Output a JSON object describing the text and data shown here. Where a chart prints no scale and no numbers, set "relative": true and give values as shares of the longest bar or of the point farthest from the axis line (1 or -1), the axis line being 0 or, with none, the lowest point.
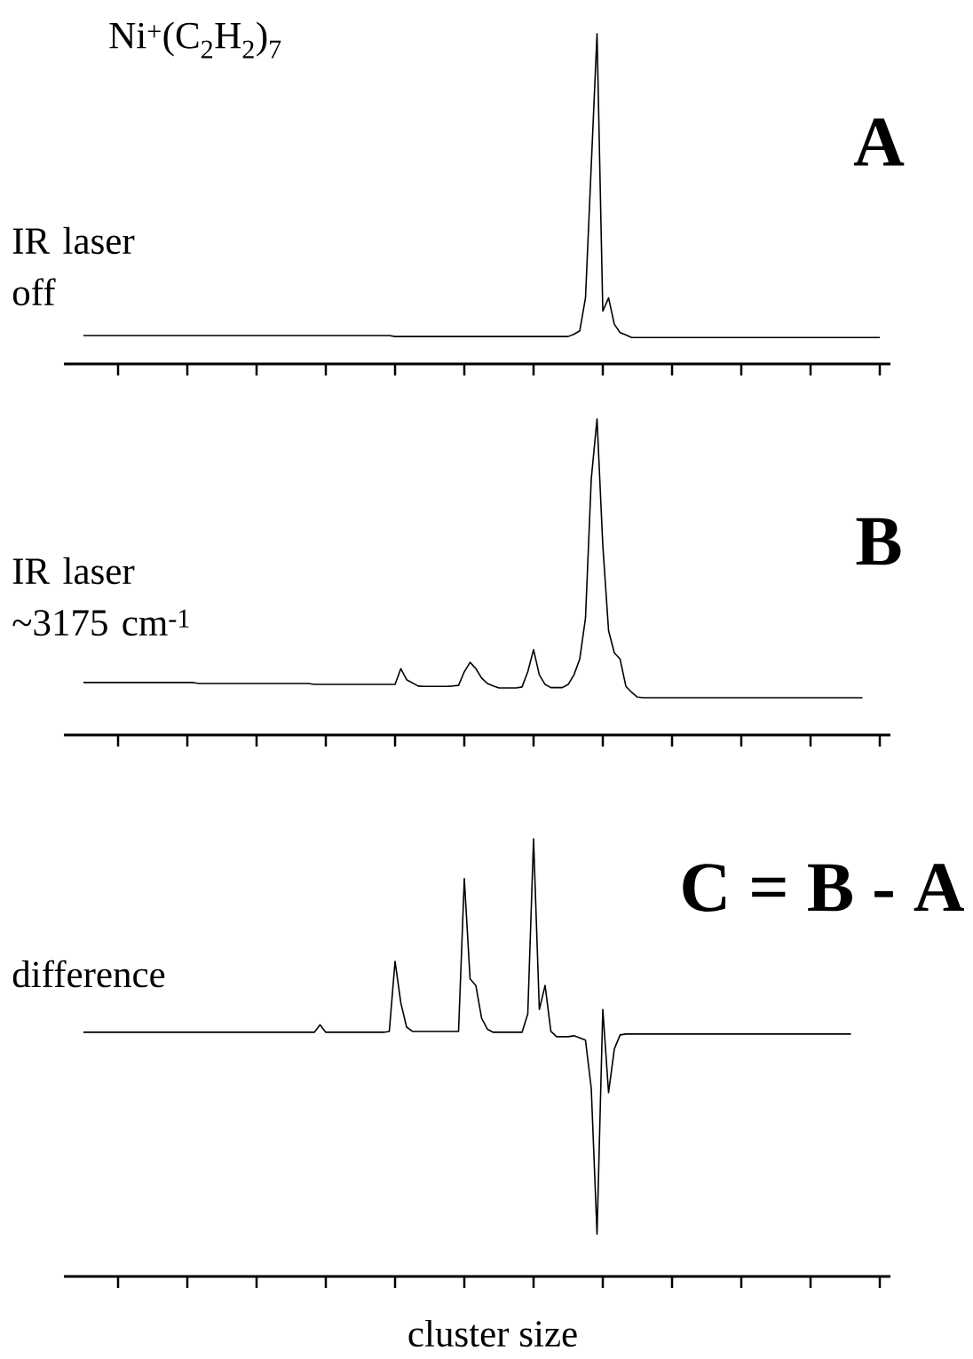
{
  "chart_data": [
    {
      "type": "line",
      "relative": true,
      "title": "A",
      "ylabel": "IR laser off",
      "annotations": [
        "Ni$^{+}$(C$_{2}$H$_{2}$)$_{7}$"
      ],
      "categories": [
        null,
        null,
        null,
        null,
        null,
        null,
        null,
        null,
        null,
        null,
        null,
        null,
        null,
        null,
        null,
        null,
        null,
        null,
        null,
        null,
        null,
        null,
        null,
        null,
        null,
        null,
        null,
        null,
        null,
        null,
        null,
        null,
        null,
        null,
        null,
        null,
        null,
        null,
        null,
        null,
        null,
        null,
        null,
        null,
        null,
        null,
        null,
        null,
        null,
        null,
        null,
        null,
        null,
        null,
        null,
        null,
        null,
        null,
        null,
        null,
        null,
        null,
        null,
        null,
        null,
        null,
        null,
        null,
        null,
        null,
        null,
        null,
        null,
        null,
        null,
        null,
        null,
        null,
        null,
        null,
        null,
        null,
        null,
        null,
        null,
        null,
        null,
        null,
        null,
        null,
        null,
        null,
        null,
        null,
        null,
        null,
        null,
        null,
        null,
        null,
        null,
        null,
        null,
        null,
        null,
        null,
        null,
        null,
        null,
        null,
        null,
        null,
        null,
        null,
        null,
        null,
        null,
        null,
        null,
        null,
        null,
        null,
        null,
        null,
        null,
        null,
        null,
        null,
        null,
        null,
        null,
        null,
        null,
        null,
        null,
        null,
        null,
        null,
        null
      ],
      "series": [
        {
          "color": "#000000",
          "values": [
            0.086,
            0.086,
            0.086,
            0.086,
            0.086,
            0.086,
            0.086,
            0.086,
            0.086,
            0.086,
            0.086,
            0.086,
            0.086,
            0.086,
            0.086,
            0.086,
            0.086,
            0.086,
            0.086,
            0.086,
            0.086,
            0.086,
            0.086,
            0.086,
            0.086,
            0.086,
            0.086,
            0.086,
            0.086,
            0.086,
            0.086,
            0.086,
            0.086,
            0.086,
            0.086,
            0.086,
            0.086,
            0.086,
            0.086,
            0.086,
            0.086,
            0.086,
            0.086,
            0.086,
            0.086,
            0.086,
            0.086,
            0.086,
            0.086,
            0.086,
            0.086,
            0.086,
            0.086,
            0.086,
            0.083,
            0.083,
            0.083,
            0.083,
            0.083,
            0.083,
            0.083,
            0.083,
            0.083,
            0.083,
            0.083,
            0.083,
            0.083,
            0.083,
            0.083,
            0.083,
            0.083,
            0.083,
            0.083,
            0.083,
            0.083,
            0.083,
            0.083,
            0.083,
            0.083,
            0.083,
            0.083,
            0.083,
            0.083,
            0.083,
            0.083,
            0.09,
            0.1,
            0.2,
            0.6,
            1.0,
            0.16,
            0.2,
            0.12,
            0.095,
            0.088,
            0.08,
            0.08,
            0.08,
            0.08,
            0.08,
            0.08,
            0.08,
            0.08,
            0.08,
            0.08,
            0.08,
            0.08,
            0.08,
            0.08,
            0.08,
            0.08,
            0.08,
            0.08,
            0.08,
            0.08,
            0.08,
            0.08,
            0.08,
            0.08,
            0.08,
            0.08,
            0.08,
            0.08,
            0.08,
            0.08,
            0.08,
            0.08,
            0.08,
            0.08,
            0.08,
            0.08,
            0.08,
            0.08,
            0.08,
            0.08,
            0.08,
            0.08,
            0.08,
            0.08
          ]
        }
      ]
    },
    {
      "type": "line",
      "relative": true,
      "title": "B",
      "ylabel": "IR laser ~3175 cm$^{-1}$",
      "categories": [
        null,
        null,
        null,
        null,
        null,
        null,
        null,
        null,
        null,
        null,
        null,
        null,
        null,
        null,
        null,
        null,
        null,
        null,
        null,
        null,
        null,
        null,
        null,
        null,
        null,
        null,
        null,
        null,
        null,
        null,
        null,
        null,
        null,
        null,
        null,
        null,
        null,
        null,
        null,
        null,
        null,
        null,
        null,
        null,
        null,
        null,
        null,
        null,
        null,
        null,
        null,
        null,
        null,
        null,
        null,
        null,
        null,
        null,
        null,
        null,
        null,
        null,
        null,
        null,
        null,
        null,
        null,
        null,
        null,
        null,
        null,
        null,
        null,
        null,
        null,
        null,
        null,
        null,
        null,
        null,
        null,
        null,
        null,
        null,
        null,
        null,
        null,
        null,
        null,
        null,
        null,
        null,
        null,
        null,
        null,
        null,
        null,
        null,
        null,
        null,
        null,
        null,
        null,
        null,
        null,
        null,
        null,
        null,
        null,
        null,
        null,
        null,
        null,
        null,
        null,
        null,
        null,
        null,
        null,
        null,
        null,
        null,
        null,
        null,
        null,
        null,
        null,
        null,
        null,
        null,
        null,
        null,
        null,
        null,
        null,
        null,
        null,
        null,
        null
      ],
      "series": [
        {
          "color": "#000000",
          "values": [
            0.166,
            0.166,
            0.166,
            0.166,
            0.166,
            0.166,
            0.166,
            0.166,
            0.166,
            0.166,
            0.166,
            0.166,
            0.166,
            0.166,
            0.166,
            0.166,
            0.166,
            0.166,
            0.166,
            0.166,
            0.163,
            0.163,
            0.163,
            0.163,
            0.163,
            0.163,
            0.163,
            0.163,
            0.163,
            0.163,
            0.163,
            0.163,
            0.163,
            0.163,
            0.163,
            0.163,
            0.163,
            0.163,
            0.163,
            0.163,
            0.16,
            0.16,
            0.16,
            0.16,
            0.16,
            0.16,
            0.16,
            0.16,
            0.16,
            0.16,
            0.16,
            0.16,
            0.16,
            0.16,
            0.16,
            0.21,
            0.175,
            0.165,
            0.155,
            0.154,
            0.154,
            0.154,
            0.154,
            0.154,
            0.155,
            0.157,
            0.2,
            0.23,
            0.21,
            0.18,
            0.163,
            0.155,
            0.149,
            0.149,
            0.149,
            0.149,
            0.152,
            0.2,
            0.27,
            0.19,
            0.16,
            0.15,
            0.15,
            0.15,
            0.16,
            0.19,
            0.24,
            0.37,
            0.81,
            1.0,
            0.6,
            0.33,
            0.26,
            0.24,
            0.154,
            0.135,
            0.12,
            0.118,
            0.118,
            0.118,
            0.118,
            0.118,
            0.118,
            0.118,
            0.118,
            0.118,
            0.118,
            0.118,
            0.118,
            0.118,
            0.118,
            0.118,
            0.118,
            0.118,
            0.118,
            0.118,
            0.118,
            0.118,
            0.118,
            0.118,
            0.118,
            0.118,
            0.118,
            0.118,
            0.118,
            0.118,
            0.118,
            0.118,
            0.118,
            0.118,
            0.118,
            0.118,
            0.118,
            0.118,
            0.118,
            0.118,
            null,
            null,
            null
          ]
        }
      ]
    },
    {
      "type": "line",
      "relative": true,
      "title": "C = B - A",
      "ylabel": "difference",
      "xlabel": "cluster size",
      "categories": [
        null,
        null,
        null,
        null,
        null,
        null,
        null,
        null,
        null,
        null,
        null,
        null,
        null,
        null,
        null,
        null,
        null,
        null,
        null,
        null,
        null,
        null,
        null,
        null,
        null,
        null,
        null,
        null,
        null,
        null,
        null,
        null,
        null,
        null,
        null,
        null,
        null,
        null,
        null,
        null,
        null,
        null,
        null,
        null,
        null,
        null,
        null,
        null,
        null,
        null,
        null,
        null,
        null,
        null,
        null,
        null,
        null,
        null,
        null,
        null,
        null,
        null,
        null,
        null,
        null,
        null,
        null,
        null,
        null,
        null,
        null,
        null,
        null,
        null,
        null,
        null,
        null,
        null,
        null,
        null,
        null,
        null,
        null,
        null,
        null,
        null,
        null,
        null,
        null,
        null,
        null,
        null,
        null,
        null,
        null,
        null,
        null,
        null,
        null,
        null,
        null,
        null,
        null,
        null,
        null,
        null,
        null,
        null,
        null,
        null,
        null,
        null,
        null,
        null,
        null,
        null,
        null,
        null,
        null,
        null,
        null,
        null,
        null,
        null,
        null,
        null,
        null,
        null,
        null,
        null,
        null,
        null,
        null,
        null,
        null,
        null,
        null,
        null,
        null
      ],
      "series": [
        {
          "color": "#000000",
          "values": [
            0.558,
            0.558,
            0.558,
            0.558,
            0.558,
            0.558,
            0.558,
            0.558,
            0.558,
            0.558,
            0.558,
            0.558,
            0.558,
            0.558,
            0.558,
            0.558,
            0.558,
            0.558,
            0.558,
            0.558,
            0.558,
            0.558,
            0.558,
            0.558,
            0.558,
            0.558,
            0.558,
            0.558,
            0.558,
            0.558,
            0.558,
            0.558,
            0.558,
            0.558,
            0.558,
            0.558,
            0.558,
            0.558,
            0.558,
            0.558,
            0.558,
            0.575,
            0.558,
            0.558,
            0.558,
            0.558,
            0.558,
            0.558,
            0.558,
            0.558,
            0.558,
            0.558,
            0.558,
            0.56,
            0.72,
            0.625,
            0.57,
            0.56,
            0.56,
            0.56,
            0.56,
            0.56,
            0.56,
            0.56,
            0.56,
            0.56,
            0.909,
            0.68,
            0.665,
            0.59,
            0.565,
            0.558,
            0.558,
            0.558,
            0.558,
            0.558,
            0.558,
            0.6,
            1.0,
            0.61,
            0.665,
            0.56,
            0.548,
            0.548,
            0.548,
            0.55,
            0.545,
            0.54,
            0.43,
            0.097,
            0.61,
            0.42,
            0.52,
            0.552,
            0.554,
            0.554,
            0.554,
            0.554,
            0.554,
            0.554,
            0.554,
            0.554,
            0.554,
            0.554,
            0.554,
            0.554,
            0.554,
            0.554,
            0.554,
            0.554,
            0.554,
            0.554,
            0.554,
            0.554,
            0.554,
            0.554,
            0.554,
            0.554,
            0.554,
            0.554,
            0.554,
            0.554,
            0.554,
            0.554,
            0.554,
            0.554,
            0.554,
            0.554,
            0.554,
            0.554,
            0.554,
            0.554,
            0.554,
            0.554,
            null,
            null,
            null,
            null,
            null
          ]
        }
      ]
    }
  ]
}
